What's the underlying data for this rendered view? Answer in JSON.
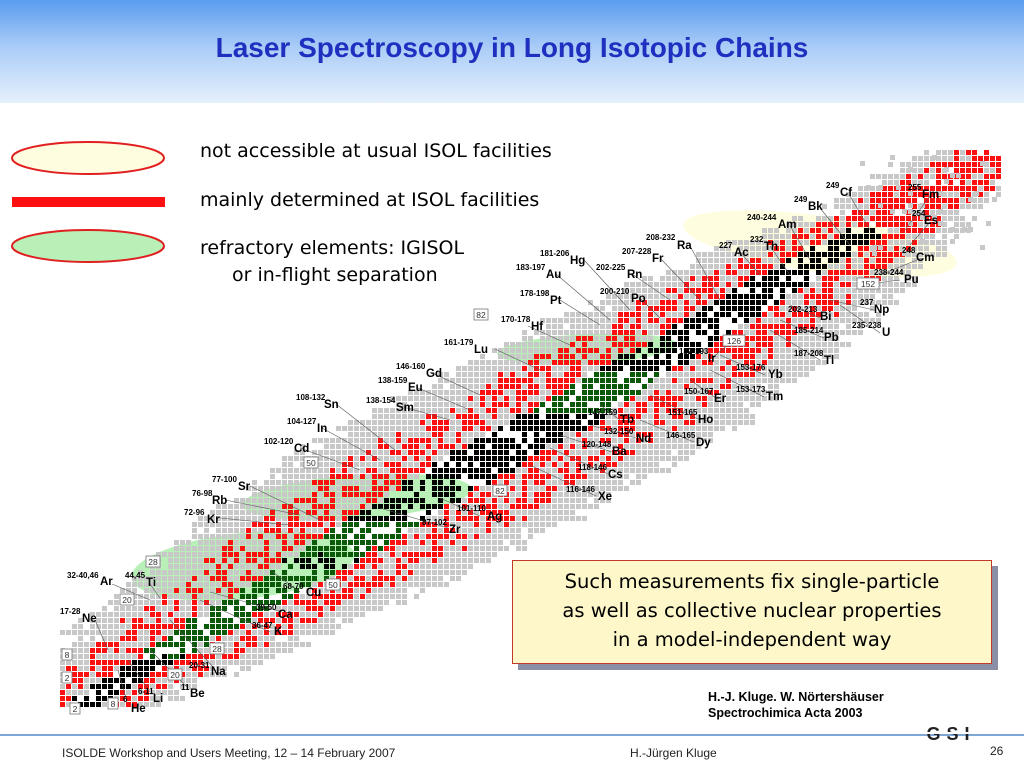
{
  "title": "Laser Spectroscopy in Long Isotopic Chains",
  "legend": [
    {
      "label": "not accessible at usual ISOL facilities"
    },
    {
      "label": "mainly determined at ISOL facilities"
    },
    {
      "label_line1": "refractory elements: IGISOL",
      "label_line2": "or in-flight separation"
    }
  ],
  "elements": [
    {
      "sym": "He",
      "range": "6"
    },
    {
      "sym": "Li",
      "range": "6-11"
    },
    {
      "sym": "Be",
      "range": "11"
    },
    {
      "sym": "Ne",
      "range": "17-28"
    },
    {
      "sym": "Na",
      "range": "20-31"
    },
    {
      "sym": "Ar",
      "range": "32-40,46"
    },
    {
      "sym": "Ti",
      "range": "44,45"
    },
    {
      "sym": "Ca",
      "range": "39-50"
    },
    {
      "sym": "K",
      "range": "36-47"
    },
    {
      "sym": "Cu",
      "range": "68-70"
    },
    {
      "sym": "Sr",
      "range": "77-100"
    },
    {
      "sym": "Rb",
      "range": "76-98"
    },
    {
      "sym": "Kr",
      "range": "72-96"
    },
    {
      "sym": "Zr",
      "range": "87-102"
    },
    {
      "sym": "Ag",
      "range": "101-110"
    },
    {
      "sym": "Cd",
      "range": "102-120"
    },
    {
      "sym": "In",
      "range": "104-127"
    },
    {
      "sym": "Sn",
      "range": "108-132"
    },
    {
      "sym": "Sm",
      "range": "138-154"
    },
    {
      "sym": "Eu",
      "range": "138-159"
    },
    {
      "sym": "Gd",
      "range": "146-160"
    },
    {
      "sym": "Lu",
      "range": "161-179"
    },
    {
      "sym": "Hf",
      "range": "170-178"
    },
    {
      "sym": "Pt",
      "range": "178-198"
    },
    {
      "sym": "Au",
      "range": "183-197"
    },
    {
      "sym": "Hg",
      "range": "181-206"
    },
    {
      "sym": "Rn",
      "range": "202-225"
    },
    {
      "sym": "Fr",
      "range": "207-228"
    },
    {
      "sym": "Po",
      "range": "200-210"
    },
    {
      "sym": "Ra",
      "range": "208-232"
    },
    {
      "sym": "Ac",
      "range": "227"
    },
    {
      "sym": "Th",
      "range": "232"
    },
    {
      "sym": "Am",
      "range": "240-244"
    },
    {
      "sym": "Bk",
      "range": "249"
    },
    {
      "sym": "Cf",
      "range": "249"
    },
    {
      "sym": "Fm",
      "range": "255"
    },
    {
      "sym": "Es",
      "range": "254"
    },
    {
      "sym": "Cm",
      "range": "248"
    },
    {
      "sym": "Pu",
      "range": "238-244"
    },
    {
      "sym": "Np",
      "range": "237"
    },
    {
      "sym": "U",
      "range": "235-238"
    },
    {
      "sym": "Bi",
      "range": "202-213"
    },
    {
      "sym": "Pb",
      "range": "185-214"
    },
    {
      "sym": "Tl",
      "range": "187-208"
    },
    {
      "sym": "Ir",
      "range": "182-193"
    },
    {
      "sym": "Yb",
      "range": "153-176"
    },
    {
      "sym": "Tm",
      "range": "153-173"
    },
    {
      "sym": "Er",
      "range": "150-167"
    },
    {
      "sym": "Ho",
      "range": "151-165"
    },
    {
      "sym": "Tb",
      "range": "147-159"
    },
    {
      "sym": "Dy",
      "range": "146-165"
    },
    {
      "sym": "Nd",
      "range": "132-150"
    },
    {
      "sym": "Ba",
      "range": "120-148"
    },
    {
      "sym": "Cs",
      "range": "118-146"
    },
    {
      "sym": "Xe",
      "range": "116-146"
    }
  ],
  "magic_numbers": [
    "2",
    "8",
    "20",
    "28",
    "50",
    "82",
    "126",
    "152",
    "2",
    "8",
    "20",
    "28",
    "50",
    "82"
  ],
  "note": {
    "line1": "Such measurements fix single-particle",
    "line2": "as well as collective nuclear properties",
    "line3": "in a model-independent way"
  },
  "reference": {
    "line1": "H.-J. Kluge. W. Nörtershäuser",
    "line2": "Spectrochimica Acta 2003"
  },
  "footer": {
    "left": "ISOLDE Workshop and Users Meeting, 12 – 14  February 2007",
    "center": "H.-Jürgen Kluge",
    "page": "26"
  },
  "logo_text": "GSI",
  "colors": {
    "title": "#1f2fbf",
    "red": "#ff1010",
    "green": "#b8f0b8",
    "yellow": "#fffde0",
    "stable": "#000000",
    "known": "#c8c8c8",
    "green_stable": "#0a5a0a"
  }
}
